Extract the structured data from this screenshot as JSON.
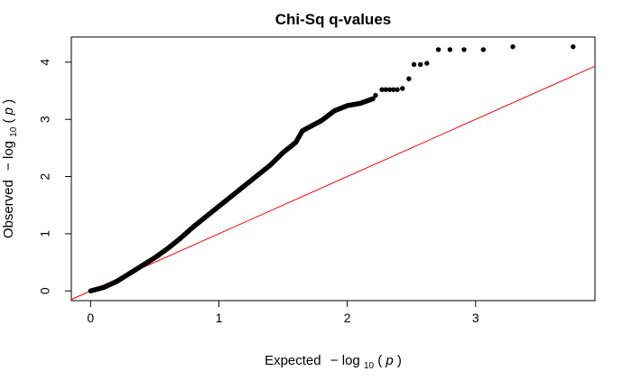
{
  "chart_data": {
    "type": "scatter",
    "title": "Chi-Sq q-values",
    "xlabel": {
      "prefix": "Expected",
      "minus": "−",
      "log_word": "log",
      "subscript": "10",
      "open_paren": "(",
      "p": "p",
      "close_paren": ")"
    },
    "ylabel": {
      "prefix": "Observed",
      "minus": "−",
      "log_word": "log",
      "subscript": "10",
      "open_paren": "(",
      "p": "p",
      "close_paren": ")"
    },
    "xlim": [
      -0.15,
      3.93
    ],
    "ylim": [
      -0.17,
      4.44
    ],
    "xticks": [
      0,
      1,
      2,
      3
    ],
    "yticks": [
      0,
      1,
      2,
      3,
      4
    ],
    "xtick_labels": [
      "0",
      "1",
      "2",
      "3"
    ],
    "ytick_labels": [
      "0",
      "1",
      "2",
      "3",
      "4"
    ],
    "reference_line": {
      "slope": 1,
      "intercept": 0,
      "color": "#ff0000"
    },
    "point_color": "#000000",
    "curve_knots": [
      [
        0.0,
        0.0
      ],
      [
        0.1,
        0.06
      ],
      [
        0.2,
        0.16
      ],
      [
        0.3,
        0.3
      ],
      [
        0.4,
        0.44
      ],
      [
        0.5,
        0.58
      ],
      [
        0.6,
        0.74
      ],
      [
        0.7,
        0.92
      ],
      [
        0.8,
        1.12
      ],
      [
        0.9,
        1.3
      ],
      [
        1.0,
        1.48
      ],
      [
        1.1,
        1.66
      ],
      [
        1.2,
        1.84
      ],
      [
        1.3,
        2.02
      ],
      [
        1.4,
        2.2
      ],
      [
        1.5,
        2.42
      ],
      [
        1.6,
        2.6
      ],
      [
        1.65,
        2.8
      ],
      [
        1.8,
        2.98
      ],
      [
        1.9,
        3.15
      ],
      [
        2.0,
        3.24
      ],
      [
        2.1,
        3.28
      ],
      [
        2.2,
        3.36
      ]
    ],
    "tail_points": [
      [
        2.22,
        3.42
      ],
      [
        2.27,
        3.52
      ],
      [
        2.3,
        3.52
      ],
      [
        2.33,
        3.52
      ],
      [
        2.36,
        3.52
      ],
      [
        2.39,
        3.52
      ],
      [
        2.43,
        3.54
      ],
      [
        2.48,
        3.71
      ],
      [
        2.52,
        3.96
      ],
      [
        2.57,
        3.96
      ],
      [
        2.62,
        3.98
      ],
      [
        2.71,
        4.22
      ],
      [
        2.8,
        4.22
      ],
      [
        2.91,
        4.22
      ],
      [
        3.06,
        4.22
      ],
      [
        3.29,
        4.27
      ],
      [
        3.76,
        4.27
      ]
    ]
  }
}
